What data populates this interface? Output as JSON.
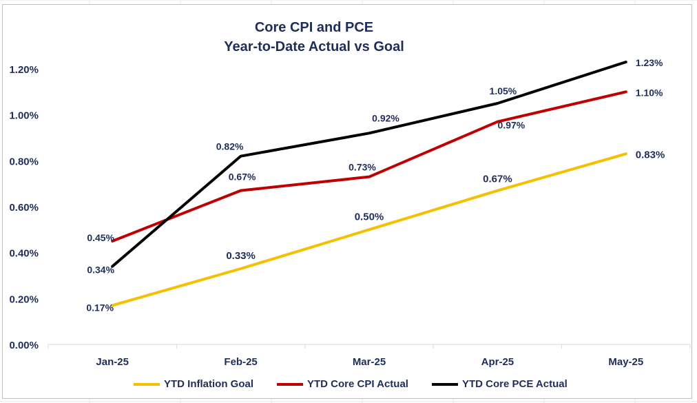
{
  "chart_data": {
    "type": "line",
    "title": "Core CPI and PCE",
    "subtitle": "Year-to-Date Actual vs Goal",
    "categories": [
      "Jan-25",
      "Feb-25",
      "Mar-25",
      "Apr-25",
      "May-25"
    ],
    "ylim": [
      0,
      1.2
    ],
    "yticks": [
      "0.00%",
      "0.20%",
      "0.40%",
      "0.60%",
      "0.80%",
      "1.00%",
      "1.20%"
    ],
    "ytick_values": [
      0,
      0.2,
      0.4,
      0.6,
      0.8,
      1.0,
      1.2
    ],
    "legend_position": "bottom",
    "series": [
      {
        "name": "YTD Inflation Goal",
        "color": "#f5c000",
        "values": [
          0.17,
          0.33,
          0.5,
          0.67,
          0.83
        ],
        "labels": [
          "0.17%",
          "0.33%",
          "0.50%",
          "0.67%",
          "0.83%"
        ]
      },
      {
        "name": "YTD Core CPI Actual",
        "color": "#c00000",
        "values": [
          0.45,
          0.67,
          0.73,
          0.97,
          1.1
        ],
        "labels": [
          "0.45%",
          "0.67%",
          "0.73%",
          "0.97%",
          "1.10%"
        ]
      },
      {
        "name": "YTD Core PCE Actual",
        "color": "#000000",
        "values": [
          0.34,
          0.82,
          0.92,
          1.05,
          1.23
        ],
        "labels": [
          "0.34%",
          "0.82%",
          "0.92%",
          "1.05%",
          "1.23%"
        ]
      }
    ]
  }
}
